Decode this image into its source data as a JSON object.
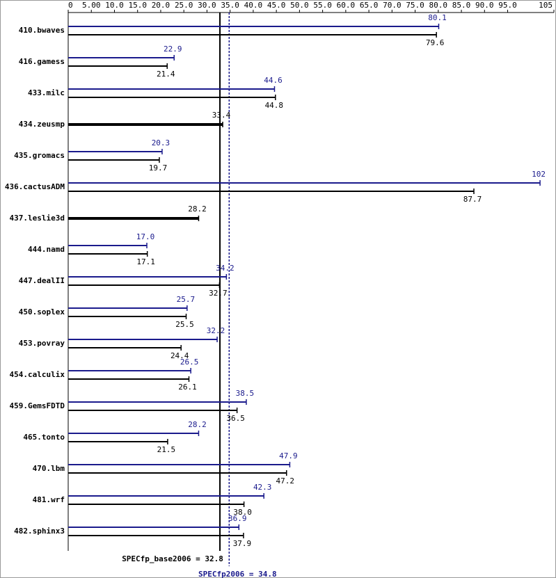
{
  "chart_data": {
    "type": "hbar",
    "categories": [
      "410.bwaves",
      "416.gamess",
      "433.milc",
      "434.zeusmp",
      "435.gromacs",
      "436.cactusADM",
      "437.leslie3d",
      "444.namd",
      "447.dealII",
      "450.soplex",
      "453.povray",
      "454.calculix",
      "459.GemsFDTD",
      "465.tonto",
      "470.lbm",
      "481.wrf",
      "482.sphinx3"
    ],
    "series": [
      {
        "color": "#1a1a8c",
        "values": [
          80.1,
          22.9,
          44.6,
          null,
          20.3,
          102,
          null,
          17.0,
          34.2,
          25.7,
          32.2,
          26.5,
          38.5,
          28.2,
          47.9,
          42.3,
          36.9
        ],
        "value_labels": [
          "80.1",
          "22.9",
          "44.6",
          null,
          "20.3",
          "102",
          null,
          "17.0",
          "34.2",
          "25.7",
          "32.2",
          "26.5",
          "38.5",
          "28.2",
          "47.9",
          "42.3",
          "36.9"
        ]
      },
      {
        "color": "#000000",
        "values": [
          79.6,
          21.4,
          44.8,
          33.4,
          19.7,
          87.7,
          28.2,
          17.1,
          32.7,
          25.5,
          24.4,
          26.1,
          36.5,
          21.5,
          47.2,
          38.0,
          37.9
        ],
        "value_labels": [
          "79.6",
          "21.4",
          "44.8",
          "33.4",
          "19.7",
          "87.7",
          "28.2",
          "17.1",
          "32.7",
          "25.5",
          "24.4",
          "26.1",
          "36.5",
          "21.5",
          "47.2",
          "38.0",
          "37.9"
        ]
      }
    ],
    "reference_lines": [
      {
        "label": "SPECfp_base2006 = 32.8",
        "value": 32.8,
        "color": "#000000"
      },
      {
        "label": "SPECfp2006 = 34.8",
        "value": 34.8,
        "color": "#1a1a8c"
      }
    ],
    "xlim": [
      0,
      105
    ],
    "xticks": [
      0,
      {
        "value": 5,
        "label": "5.00"
      },
      {
        "value": 10,
        "label": "10.0"
      },
      {
        "value": 15,
        "label": "15.0"
      },
      {
        "value": 20,
        "label": "20.0"
      },
      {
        "value": 25,
        "label": "25.0"
      },
      {
        "value": 30,
        "label": "30.0"
      },
      {
        "value": 35,
        "label": "35.0"
      },
      {
        "value": 40,
        "label": "40.0"
      },
      {
        "value": 45,
        "label": "45.0"
      },
      {
        "value": 50,
        "label": "50.0"
      },
      {
        "value": 55,
        "label": "55.0"
      },
      {
        "value": 60,
        "label": "60.0"
      },
      {
        "value": 65,
        "label": "65.0"
      },
      {
        "value": 70,
        "label": "70.0"
      },
      {
        "value": 75,
        "label": "75.0"
      },
      {
        "value": 80,
        "label": "80.0"
      },
      {
        "value": 85,
        "label": "85.0"
      },
      {
        "value": 90,
        "label": "90.0"
      },
      {
        "value": 95,
        "label": "95.0"
      },
      105
    ]
  }
}
